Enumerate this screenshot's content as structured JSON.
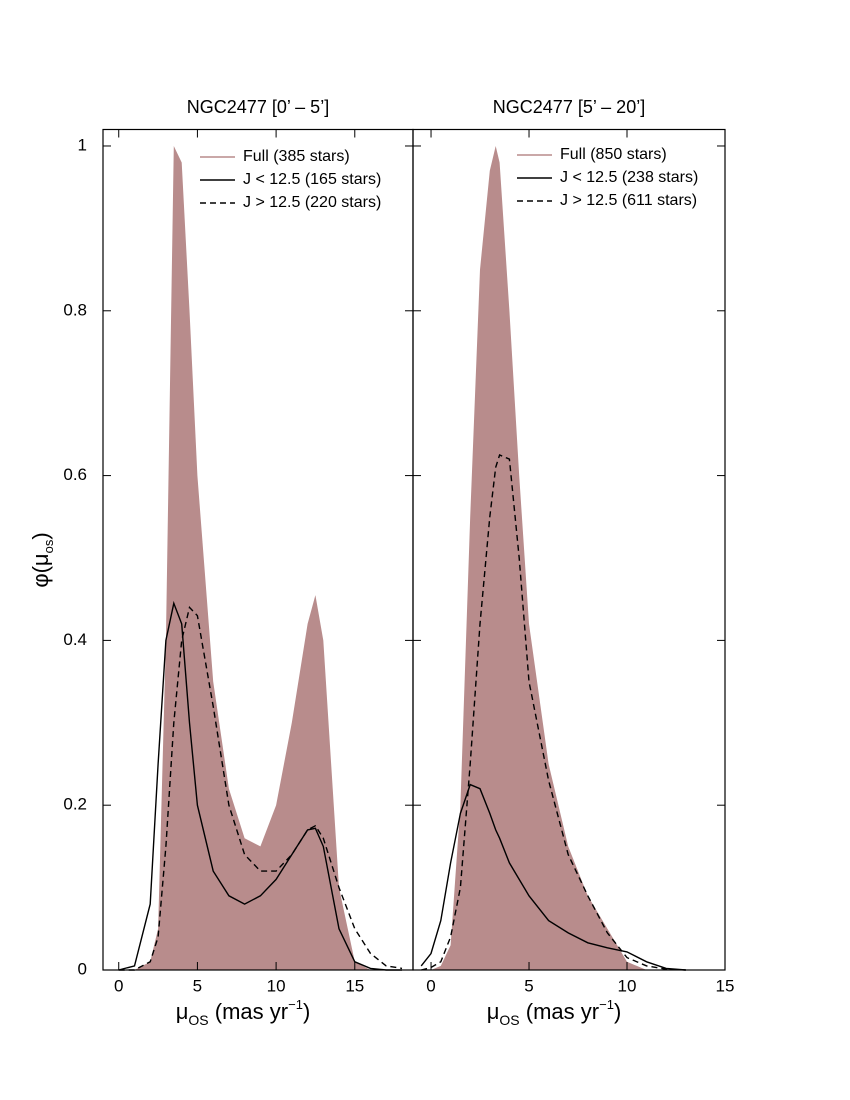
{
  "chart_data": [
    {
      "type": "line",
      "title": "NGC2477 [0’ – 5’]",
      "xlabel": [
        "μ",
        "OS",
        " (mas yr",
        "−1",
        ")"
      ],
      "ylabel": [
        "φ(μ",
        "os",
        ")"
      ],
      "xlim": [
        -1.0,
        18.7
      ],
      "xticks": [
        0,
        5,
        10,
        15
      ],
      "ylim": [
        0,
        1.02
      ],
      "yticks": [
        0,
        0.2,
        0.4,
        0.6,
        0.8,
        1
      ],
      "ytick_labels": true,
      "x": [
        0,
        1,
        2,
        2.5,
        3,
        3.5,
        4,
        4.5,
        5,
        6,
        7,
        8,
        9,
        10,
        11,
        12,
        12.5,
        13,
        14,
        15,
        16,
        17,
        18
      ],
      "series": [
        {
          "name": "Full (385 stars)",
          "color": "#b88c8c",
          "style": "fill",
          "values": [
            0,
            0,
            0.01,
            0.05,
            0.4,
            1.0,
            0.98,
            0.8,
            0.6,
            0.35,
            0.22,
            0.16,
            0.15,
            0.2,
            0.3,
            0.42,
            0.455,
            0.4,
            0.1,
            0.01,
            0,
            0,
            0
          ]
        },
        {
          "name": "J < 12.5 (165 stars)",
          "color": "#000000",
          "style": "solid",
          "values": [
            0,
            0.005,
            0.08,
            0.25,
            0.4,
            0.445,
            0.42,
            0.3,
            0.2,
            0.12,
            0.09,
            0.08,
            0.09,
            0.11,
            0.14,
            0.17,
            0.172,
            0.15,
            0.05,
            0.01,
            0.002,
            0,
            0
          ]
        },
        {
          "name": "J > 12.5 (220 stars)",
          "color": "#000000",
          "style": "dashed",
          "values": [
            0,
            0,
            0.01,
            0.04,
            0.15,
            0.3,
            0.4,
            0.44,
            0.43,
            0.32,
            0.2,
            0.14,
            0.12,
            0.12,
            0.14,
            0.17,
            0.175,
            0.16,
            0.1,
            0.05,
            0.02,
            0.005,
            0.002
          ]
        }
      ]
    },
    {
      "type": "line",
      "title": "NGC2477 [5’ – 20’]",
      "xlabel": [
        "μ",
        "OS",
        " (mas yr",
        "−1",
        ")"
      ],
      "xlim": [
        -0.92,
        15
      ],
      "xticks": [
        0,
        5,
        10,
        15
      ],
      "ylim": [
        0,
        1.02
      ],
      "yticks": [
        0,
        0.2,
        0.4,
        0.6,
        0.8,
        1
      ],
      "ytick_labels": false,
      "x": [
        -0.5,
        0,
        0.5,
        1,
        1.5,
        2,
        2.5,
        3,
        3.3,
        3.5,
        4,
        4.5,
        5,
        6,
        7,
        8,
        9,
        10,
        11,
        12,
        13
      ],
      "series": [
        {
          "name": "Full (850 stars)",
          "color": "#b88c8c",
          "style": "fill",
          "values": [
            0,
            0,
            0.005,
            0.03,
            0.2,
            0.55,
            0.85,
            0.97,
            1.0,
            0.98,
            0.8,
            0.6,
            0.42,
            0.25,
            0.15,
            0.09,
            0.05,
            0.01,
            0,
            0,
            0
          ]
        },
        {
          "name": "J < 12.5 (238 stars)",
          "color": "#000000",
          "style": "solid",
          "values": [
            0.005,
            0.02,
            0.06,
            0.13,
            0.19,
            0.225,
            0.22,
            0.19,
            0.17,
            0.16,
            0.13,
            0.11,
            0.09,
            0.06,
            0.045,
            0.033,
            0.027,
            0.022,
            0.01,
            0.002,
            0
          ]
        },
        {
          "name": "J > 12.5 (611 stars)",
          "color": "#000000",
          "style": "dashed",
          "values": [
            0,
            0.003,
            0.01,
            0.04,
            0.1,
            0.25,
            0.42,
            0.55,
            0.61,
            0.625,
            0.62,
            0.5,
            0.35,
            0.23,
            0.14,
            0.09,
            0.045,
            0.015,
            0.005,
            0.001,
            0
          ]
        }
      ]
    }
  ]
}
